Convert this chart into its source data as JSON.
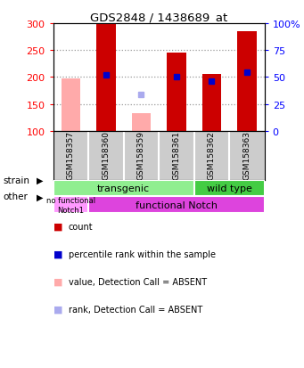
{
  "title": "GDS2848 / 1438689_at",
  "samples": [
    "GSM158357",
    "GSM158360",
    "GSM158359",
    "GSM158361",
    "GSM158362",
    "GSM158363"
  ],
  "ylim_left": [
    100,
    300
  ],
  "ylim_right": [
    0,
    100
  ],
  "yticks_left": [
    100,
    150,
    200,
    250,
    300
  ],
  "yticks_right": [
    0,
    25,
    50,
    75,
    100
  ],
  "ytick_labels_right": [
    "0",
    "25",
    "50",
    "75",
    "100%"
  ],
  "count_values": [
    null,
    300,
    null,
    245,
    205,
    285
  ],
  "count_base": 100,
  "rank_values": [
    null,
    204,
    null,
    201,
    192,
    209
  ],
  "absent_value_values": [
    197,
    null,
    132,
    null,
    null,
    null
  ],
  "absent_rank_values": [
    null,
    null,
    168,
    null,
    null,
    null
  ],
  "count_color": "#cc0000",
  "rank_color": "#0000cc",
  "absent_value_color": "#ffaaaa",
  "absent_rank_color": "#aaaaee",
  "bar_width": 0.55,
  "grid_dotted": [
    150,
    200,
    250
  ],
  "transgenic_color": "#a0eeа0",
  "wildtype_color": "#44cc44",
  "nofunc_color": "#ff88ff",
  "func_color": "#dd44dd",
  "legend_items": [
    {
      "color": "#cc0000",
      "label": "count"
    },
    {
      "color": "#0000cc",
      "label": "percentile rank within the sample"
    },
    {
      "color": "#ffaaaa",
      "label": "value, Detection Call = ABSENT"
    },
    {
      "color": "#aaaaee",
      "label": "rank, Detection Call = ABSENT"
    }
  ]
}
